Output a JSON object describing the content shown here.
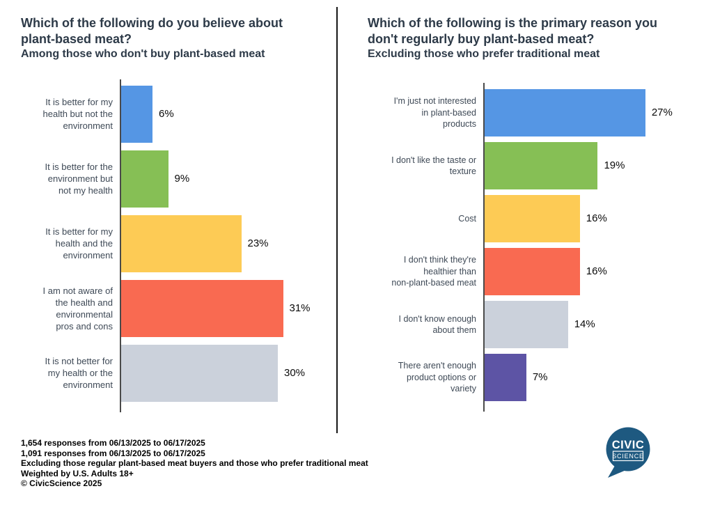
{
  "chart_data": [
    {
      "type": "bar",
      "orientation": "horizontal",
      "title": "Which of the following do you believe about\nplant-based meat?",
      "subtitle": "Among those who don't buy plant-based meat",
      "categories": [
        "It is better for my\nhealth but not the\nenvironment",
        "It is better for the\nenvironment but\nnot my health",
        "It is better for my\nhealth and the\nenvironment",
        "I am not aware of\nthe health and\nenvironmental\npros and cons",
        "It is not better for\nmy health or the\nenvironment"
      ],
      "values": [
        6,
        9,
        23,
        31,
        30
      ],
      "value_labels": [
        "6%",
        "9%",
        "23%",
        "31%",
        "30%"
      ],
      "value_unit": "%",
      "bar_colors": [
        "#5596E4",
        "#86BF55",
        "#FDCB55",
        "#F96A51",
        "#CBD1DB"
      ],
      "grid": false,
      "legend": false
    },
    {
      "type": "bar",
      "orientation": "horizontal",
      "title": "Which of the following is the primary reason you\ndon't regularly buy plant-based meat?",
      "subtitle": "Excluding those who prefer traditional meat",
      "categories": [
        "I'm just not interested\nin plant-based\nproducts",
        "I don't like the taste or\ntexture",
        "Cost",
        "I don't think they're\nhealthier than\nnon-plant-based meat",
        "I don't know enough\nabout them",
        "There aren't enough\nproduct options or\nvariety"
      ],
      "values": [
        27,
        19,
        16,
        16,
        14,
        7
      ],
      "value_labels": [
        "27%",
        "19%",
        "16%",
        "16%",
        "14%",
        "7%"
      ],
      "value_unit": "%",
      "bar_colors": [
        "#5596E4",
        "#86BF55",
        "#FDCB55",
        "#F96A51",
        "#CBD1DB",
        "#5D54A5"
      ],
      "grid": false,
      "legend": false
    }
  ],
  "footer": {
    "lines": [
      "1,654 responses from 06/13/2025 to 06/17/2025",
      "1,091 responses from 06/13/2025 to 06/17/2025",
      "Excluding those regular plant-based meat buyers and those who prefer traditional meat",
      "Weighted by U.S. Adults 18+",
      "© CivicScience 2025"
    ]
  },
  "logo": {
    "line1": "CIVIC",
    "line2": "SCIENCE",
    "bubble_color": "#1E5980",
    "text_color": "#FFFFFF"
  },
  "colors": {
    "title_text": "#2d3a48",
    "category_text": "#3e4956",
    "value_text": "#0a0a0a",
    "axis_line": "#4a4a4a",
    "divider": "#161616",
    "background": "#ffffff"
  }
}
